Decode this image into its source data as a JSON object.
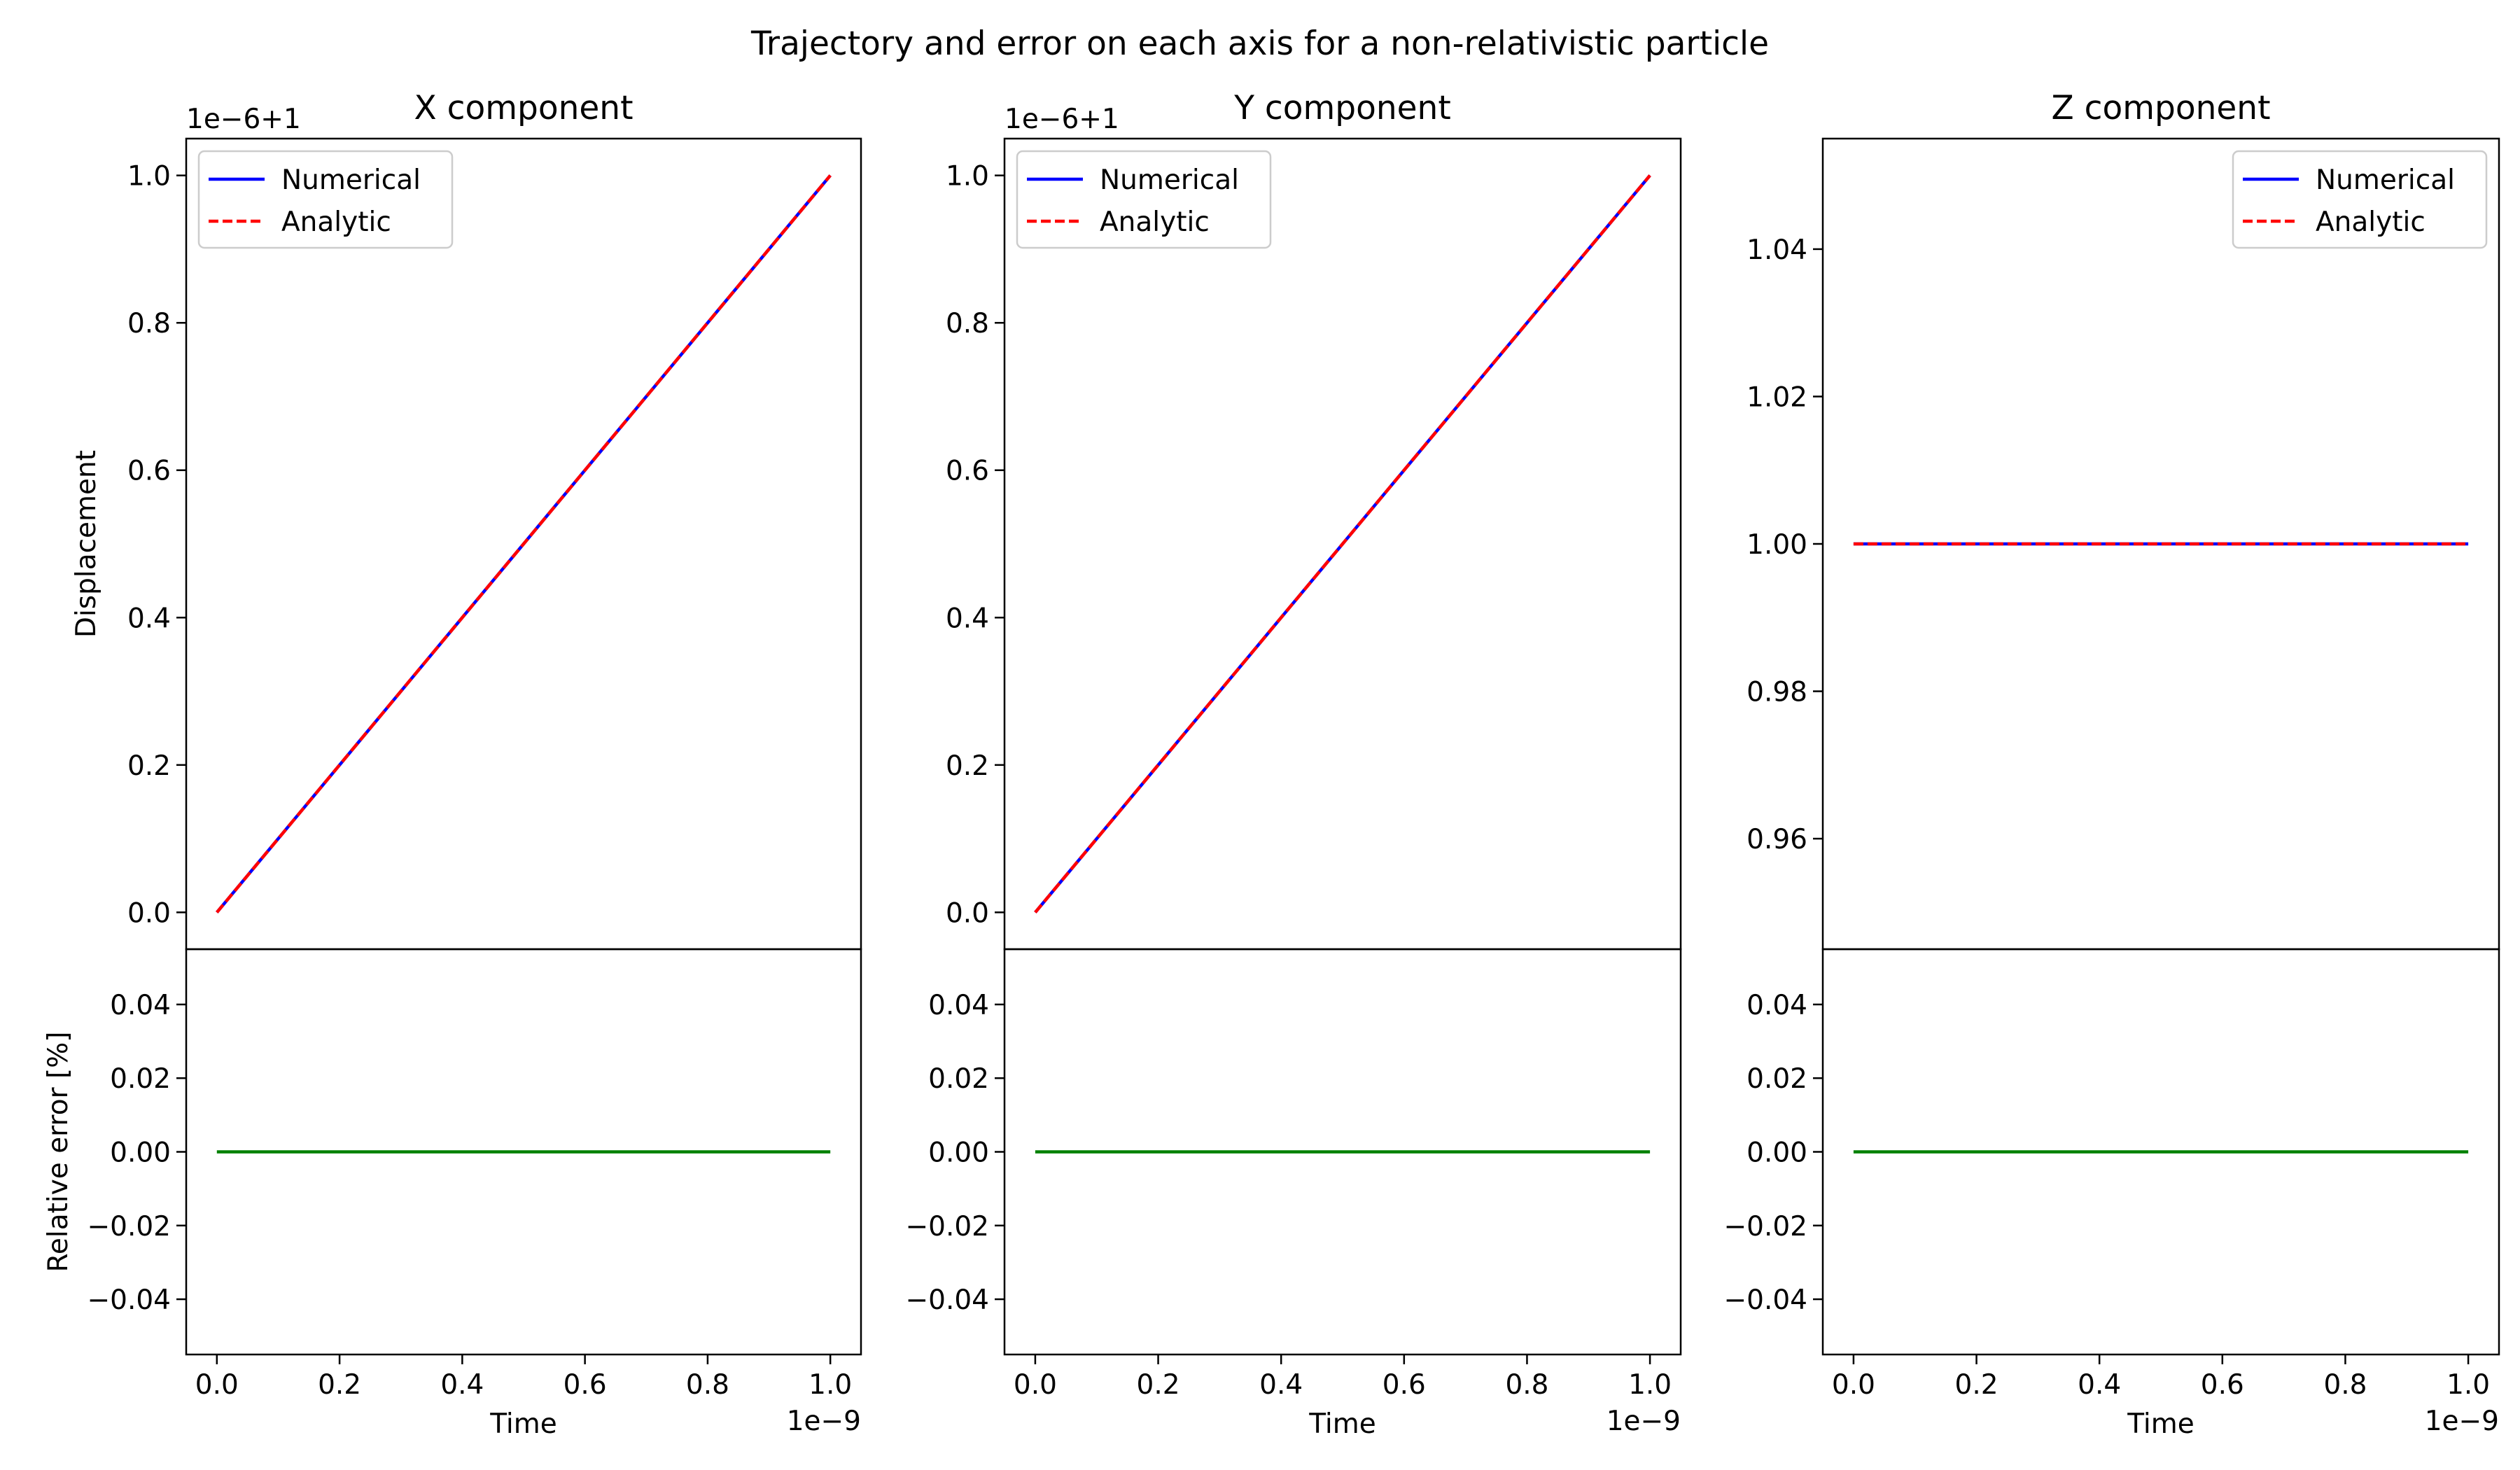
{
  "figure": {
    "title": "Trajectory and error on each axis for a non-relativistic particle"
  },
  "colors": {
    "numerical": "#0000ff",
    "analytic": "#ff0000",
    "error": "#008000",
    "axes": "#000000",
    "legend_border": "#cccccc"
  },
  "chart_data": [
    {
      "type": "line",
      "title": "X component",
      "xlabel": "Time",
      "ylabel": "Displacement",
      "offset_label": "1e−6+1",
      "x_multiplier_label": "1e−9",
      "legend_position": "upper-left",
      "grid": false,
      "xlim": [
        -0.05,
        1.05
      ],
      "ylim": [
        -0.05,
        1.05
      ],
      "x_ticks": [
        "0.0",
        "0.2",
        "0.4",
        "0.6",
        "0.8",
        "1.0"
      ],
      "y_ticks": [
        "0.0",
        "0.2",
        "0.4",
        "0.6",
        "0.8",
        "1.0"
      ],
      "x_tick_values": [
        0.0,
        0.2,
        0.4,
        0.6,
        0.8,
        1.0
      ],
      "y_tick_values": [
        0.0,
        0.2,
        0.4,
        0.6,
        0.8,
        1.0
      ],
      "x": [
        0.0,
        1.0
      ],
      "series": [
        {
          "name": "Numerical",
          "values": [
            0.0,
            1.0
          ]
        },
        {
          "name": "Analytic",
          "values": [
            0.0,
            1.0
          ]
        }
      ]
    },
    {
      "type": "line",
      "title": "Y component",
      "xlabel": "Time",
      "ylabel": "",
      "offset_label": "1e−6+1",
      "x_multiplier_label": "1e−9",
      "legend_position": "upper-left",
      "grid": false,
      "xlim": [
        -0.05,
        1.05
      ],
      "ylim": [
        -0.05,
        1.05
      ],
      "x_ticks": [
        "0.0",
        "0.2",
        "0.4",
        "0.6",
        "0.8",
        "1.0"
      ],
      "y_ticks": [
        "0.0",
        "0.2",
        "0.4",
        "0.6",
        "0.8",
        "1.0"
      ],
      "x_tick_values": [
        0.0,
        0.2,
        0.4,
        0.6,
        0.8,
        1.0
      ],
      "y_tick_values": [
        0.0,
        0.2,
        0.4,
        0.6,
        0.8,
        1.0
      ],
      "x": [
        0.0,
        1.0
      ],
      "series": [
        {
          "name": "Numerical",
          "values": [
            0.0,
            1.0
          ]
        },
        {
          "name": "Analytic",
          "values": [
            0.0,
            1.0
          ]
        }
      ]
    },
    {
      "type": "line",
      "title": "Z component",
      "xlabel": "Time",
      "ylabel": "",
      "offset_label": "",
      "x_multiplier_label": "1e−9",
      "legend_position": "upper-right",
      "grid": false,
      "xlim": [
        -0.05,
        1.05
      ],
      "ylim": [
        0.945,
        1.055
      ],
      "x_ticks": [
        "0.0",
        "0.2",
        "0.4",
        "0.6",
        "0.8",
        "1.0"
      ],
      "y_ticks": [
        "0.96",
        "0.98",
        "1.00",
        "1.02",
        "1.04"
      ],
      "x_tick_values": [
        0.0,
        0.2,
        0.4,
        0.6,
        0.8,
        1.0
      ],
      "y_tick_values": [
        0.96,
        0.98,
        1.0,
        1.02,
        1.04
      ],
      "x": [
        0.0,
        1.0
      ],
      "series": [
        {
          "name": "Numerical",
          "values": [
            1.0,
            1.0
          ]
        },
        {
          "name": "Analytic",
          "values": [
            1.0,
            1.0
          ]
        }
      ]
    },
    {
      "type": "line",
      "title": "",
      "xlabel": "Time",
      "ylabel": "Relative error [%]",
      "x_multiplier_label": "1e−9",
      "grid": false,
      "xlim": [
        -0.05,
        1.05
      ],
      "ylim": [
        -0.055,
        0.055
      ],
      "x_ticks": [
        "0.0",
        "0.2",
        "0.4",
        "0.6",
        "0.8",
        "1.0"
      ],
      "y_ticks": [
        "0.04",
        "0.02",
        "0.00",
        "−0.02",
        "−0.04"
      ],
      "x_tick_values": [
        0.0,
        0.2,
        0.4,
        0.6,
        0.8,
        1.0
      ],
      "y_tick_values": [
        0.04,
        0.02,
        0.0,
        -0.02,
        -0.04
      ],
      "x": [
        0.0,
        1.0
      ],
      "series": [
        {
          "values": [
            0.0,
            0.0
          ]
        }
      ]
    },
    {
      "type": "line",
      "title": "",
      "xlabel": "Time",
      "ylabel": "",
      "x_multiplier_label": "1e−9",
      "grid": false,
      "xlim": [
        -0.05,
        1.05
      ],
      "ylim": [
        -0.055,
        0.055
      ],
      "x_ticks": [
        "0.0",
        "0.2",
        "0.4",
        "0.6",
        "0.8",
        "1.0"
      ],
      "y_ticks": [
        "0.04",
        "0.02",
        "0.00",
        "−0.02",
        "−0.04"
      ],
      "x_tick_values": [
        0.0,
        0.2,
        0.4,
        0.6,
        0.8,
        1.0
      ],
      "y_tick_values": [
        0.04,
        0.02,
        0.0,
        -0.02,
        -0.04
      ],
      "x": [
        0.0,
        1.0
      ],
      "series": [
        {
          "values": [
            0.0,
            0.0
          ]
        }
      ]
    },
    {
      "type": "line",
      "title": "",
      "xlabel": "Time",
      "ylabel": "",
      "x_multiplier_label": "1e−9",
      "grid": false,
      "xlim": [
        -0.05,
        1.05
      ],
      "ylim": [
        -0.055,
        0.055
      ],
      "x_ticks": [
        "0.0",
        "0.2",
        "0.4",
        "0.6",
        "0.8",
        "1.0"
      ],
      "y_ticks": [
        "0.04",
        "0.02",
        "0.00",
        "−0.02",
        "−0.04"
      ],
      "x_tick_values": [
        0.0,
        0.2,
        0.4,
        0.6,
        0.8,
        1.0
      ],
      "y_tick_values": [
        0.04,
        0.02,
        0.0,
        -0.02,
        -0.04
      ],
      "x": [
        0.0,
        1.0
      ],
      "series": [
        {
          "values": [
            0.0,
            0.0
          ]
        }
      ]
    }
  ]
}
